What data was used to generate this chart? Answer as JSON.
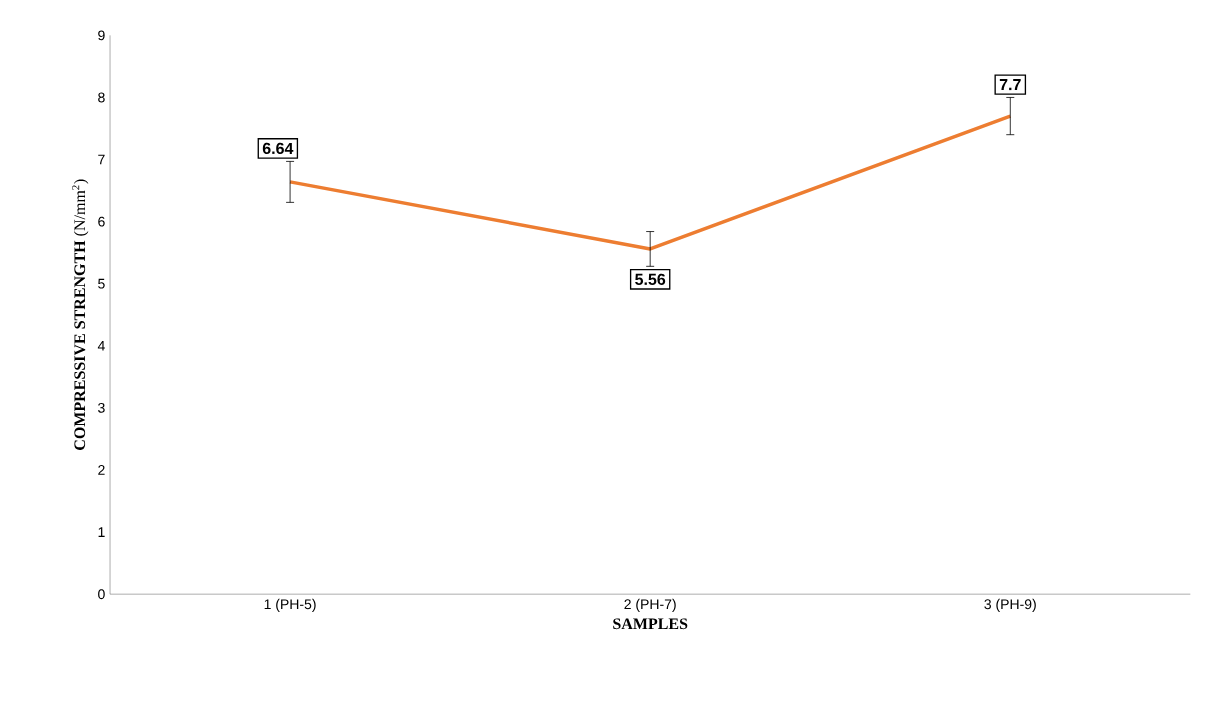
{
  "chart_data": {
    "type": "line",
    "xlabel": "SAMPLES",
    "ylabel": "**COMPRESSIVE STRENGTH** (N/mm$^{2}$)",
    "categories": [
      "1 (PH-5)",
      "2 (PH-7)",
      "3 (PH-9)"
    ],
    "values": [
      6.64,
      5.56,
      7.7
    ],
    "errors": [
      0.33,
      0.28,
      0.3
    ],
    "color": "#ed7d31",
    "marker": "none",
    "line_style": "solid",
    "ylim": [
      0,
      9
    ],
    "yticks": [
      0,
      1,
      2,
      3,
      4,
      5,
      6,
      7,
      8,
      9
    ],
    "data_labels": true,
    "grid": false
  }
}
